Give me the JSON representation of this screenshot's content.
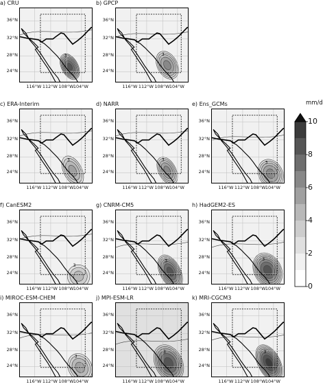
{
  "panels": [
    {
      "title": "a) CRU",
      "center": [
        0.68,
        0.78
      ],
      "rx": 0.12,
      "ry": 0.2,
      "peak": 8.5,
      "bg": 1.2,
      "n_lat": 0.55,
      "dash_right": true
    },
    {
      "title": "b) GPCP",
      "center": [
        0.7,
        0.76
      ],
      "rx": 0.15,
      "ry": 0.22,
      "peak": 6.5,
      "bg": 1.4,
      "n_lat": 0.6,
      "dash_right": true
    },
    {
      "title": "c) ERA-Interim",
      "center": [
        0.72,
        0.82
      ],
      "rx": 0.14,
      "ry": 0.24,
      "peak": 5.5,
      "bg": 1.3,
      "n_lat": 0.55,
      "dash_right": true
    },
    {
      "title": "d) NARR",
      "center": [
        0.7,
        0.82
      ],
      "rx": 0.13,
      "ry": 0.22,
      "peak": 6.5,
      "bg": 1.2,
      "n_lat": 0.55,
      "dash_right": true
    },
    {
      "title": "e) Ens_GCMs",
      "center": [
        0.8,
        0.86
      ],
      "rx": 0.18,
      "ry": 0.22,
      "peak": 6.5,
      "bg": 1.5,
      "n_lat": 0.65,
      "dash_right": true
    },
    {
      "title": "f) CanESM2",
      "center": [
        0.8,
        0.88
      ],
      "rx": 0.18,
      "ry": 0.18,
      "peak": 4.5,
      "bg": 1.3,
      "n_lat": 0.6,
      "dash_right": true
    },
    {
      "title": "g) CNRM-CM5",
      "center": [
        0.74,
        0.82
      ],
      "rx": 0.15,
      "ry": 0.26,
      "peak": 8.5,
      "bg": 1.6,
      "n_lat": 0.8,
      "dash_right": true
    },
    {
      "title": "h) HadGEM2-ES",
      "center": [
        0.76,
        0.8
      ],
      "rx": 0.2,
      "ry": 0.26,
      "peak": 8.5,
      "bg": 1.6,
      "n_lat": 0.8,
      "dash_right": true
    },
    {
      "title": "i) MIROC-ESM-CHEM",
      "center": [
        0.82,
        0.86
      ],
      "rx": 0.18,
      "ry": 0.22,
      "peak": 5.5,
      "bg": 1.8,
      "n_lat": 0.75,
      "dash_right": true
    },
    {
      "title": "j) MPI-ESM-LR",
      "center": [
        0.72,
        0.8
      ],
      "rx": 0.2,
      "ry": 0.28,
      "peak": 8.5,
      "bg": 2.0,
      "n_lat": 0.9,
      "dash_right": true
    },
    {
      "title": "k) MRI-CGCM3",
      "center": [
        0.78,
        0.8
      ],
      "rx": 0.16,
      "ry": 0.28,
      "peak": 9.5,
      "bg": 1.8,
      "n_lat": 0.8,
      "dash_right": true
    }
  ],
  "lat_labels": [
    "36°N",
    "32°N",
    "28°N",
    "24°N"
  ],
  "lon_labels": [
    "116°W",
    "112°W",
    "108°W",
    "104°W"
  ],
  "contour_label": "3",
  "colorbar": {
    "unit": "mm/d",
    "ticks": [
      "10",
      "8",
      "6",
      "4",
      "2",
      "0"
    ],
    "levels": [
      0,
      1,
      2,
      3,
      4,
      5,
      6,
      7,
      8,
      9,
      10
    ],
    "colors": [
      "#ffffff",
      "#f1f1f1",
      "#e0e0e0",
      "#cdcdcd",
      "#b8b8b8",
      "#a0a0a0",
      "#888888",
      "#6e6e6e",
      "#555555",
      "#3b3b3b"
    ]
  },
  "colors": {
    "coast": "#000000",
    "grid": "#bdbdbd",
    "contour": "#444444",
    "box": "#000000"
  }
}
